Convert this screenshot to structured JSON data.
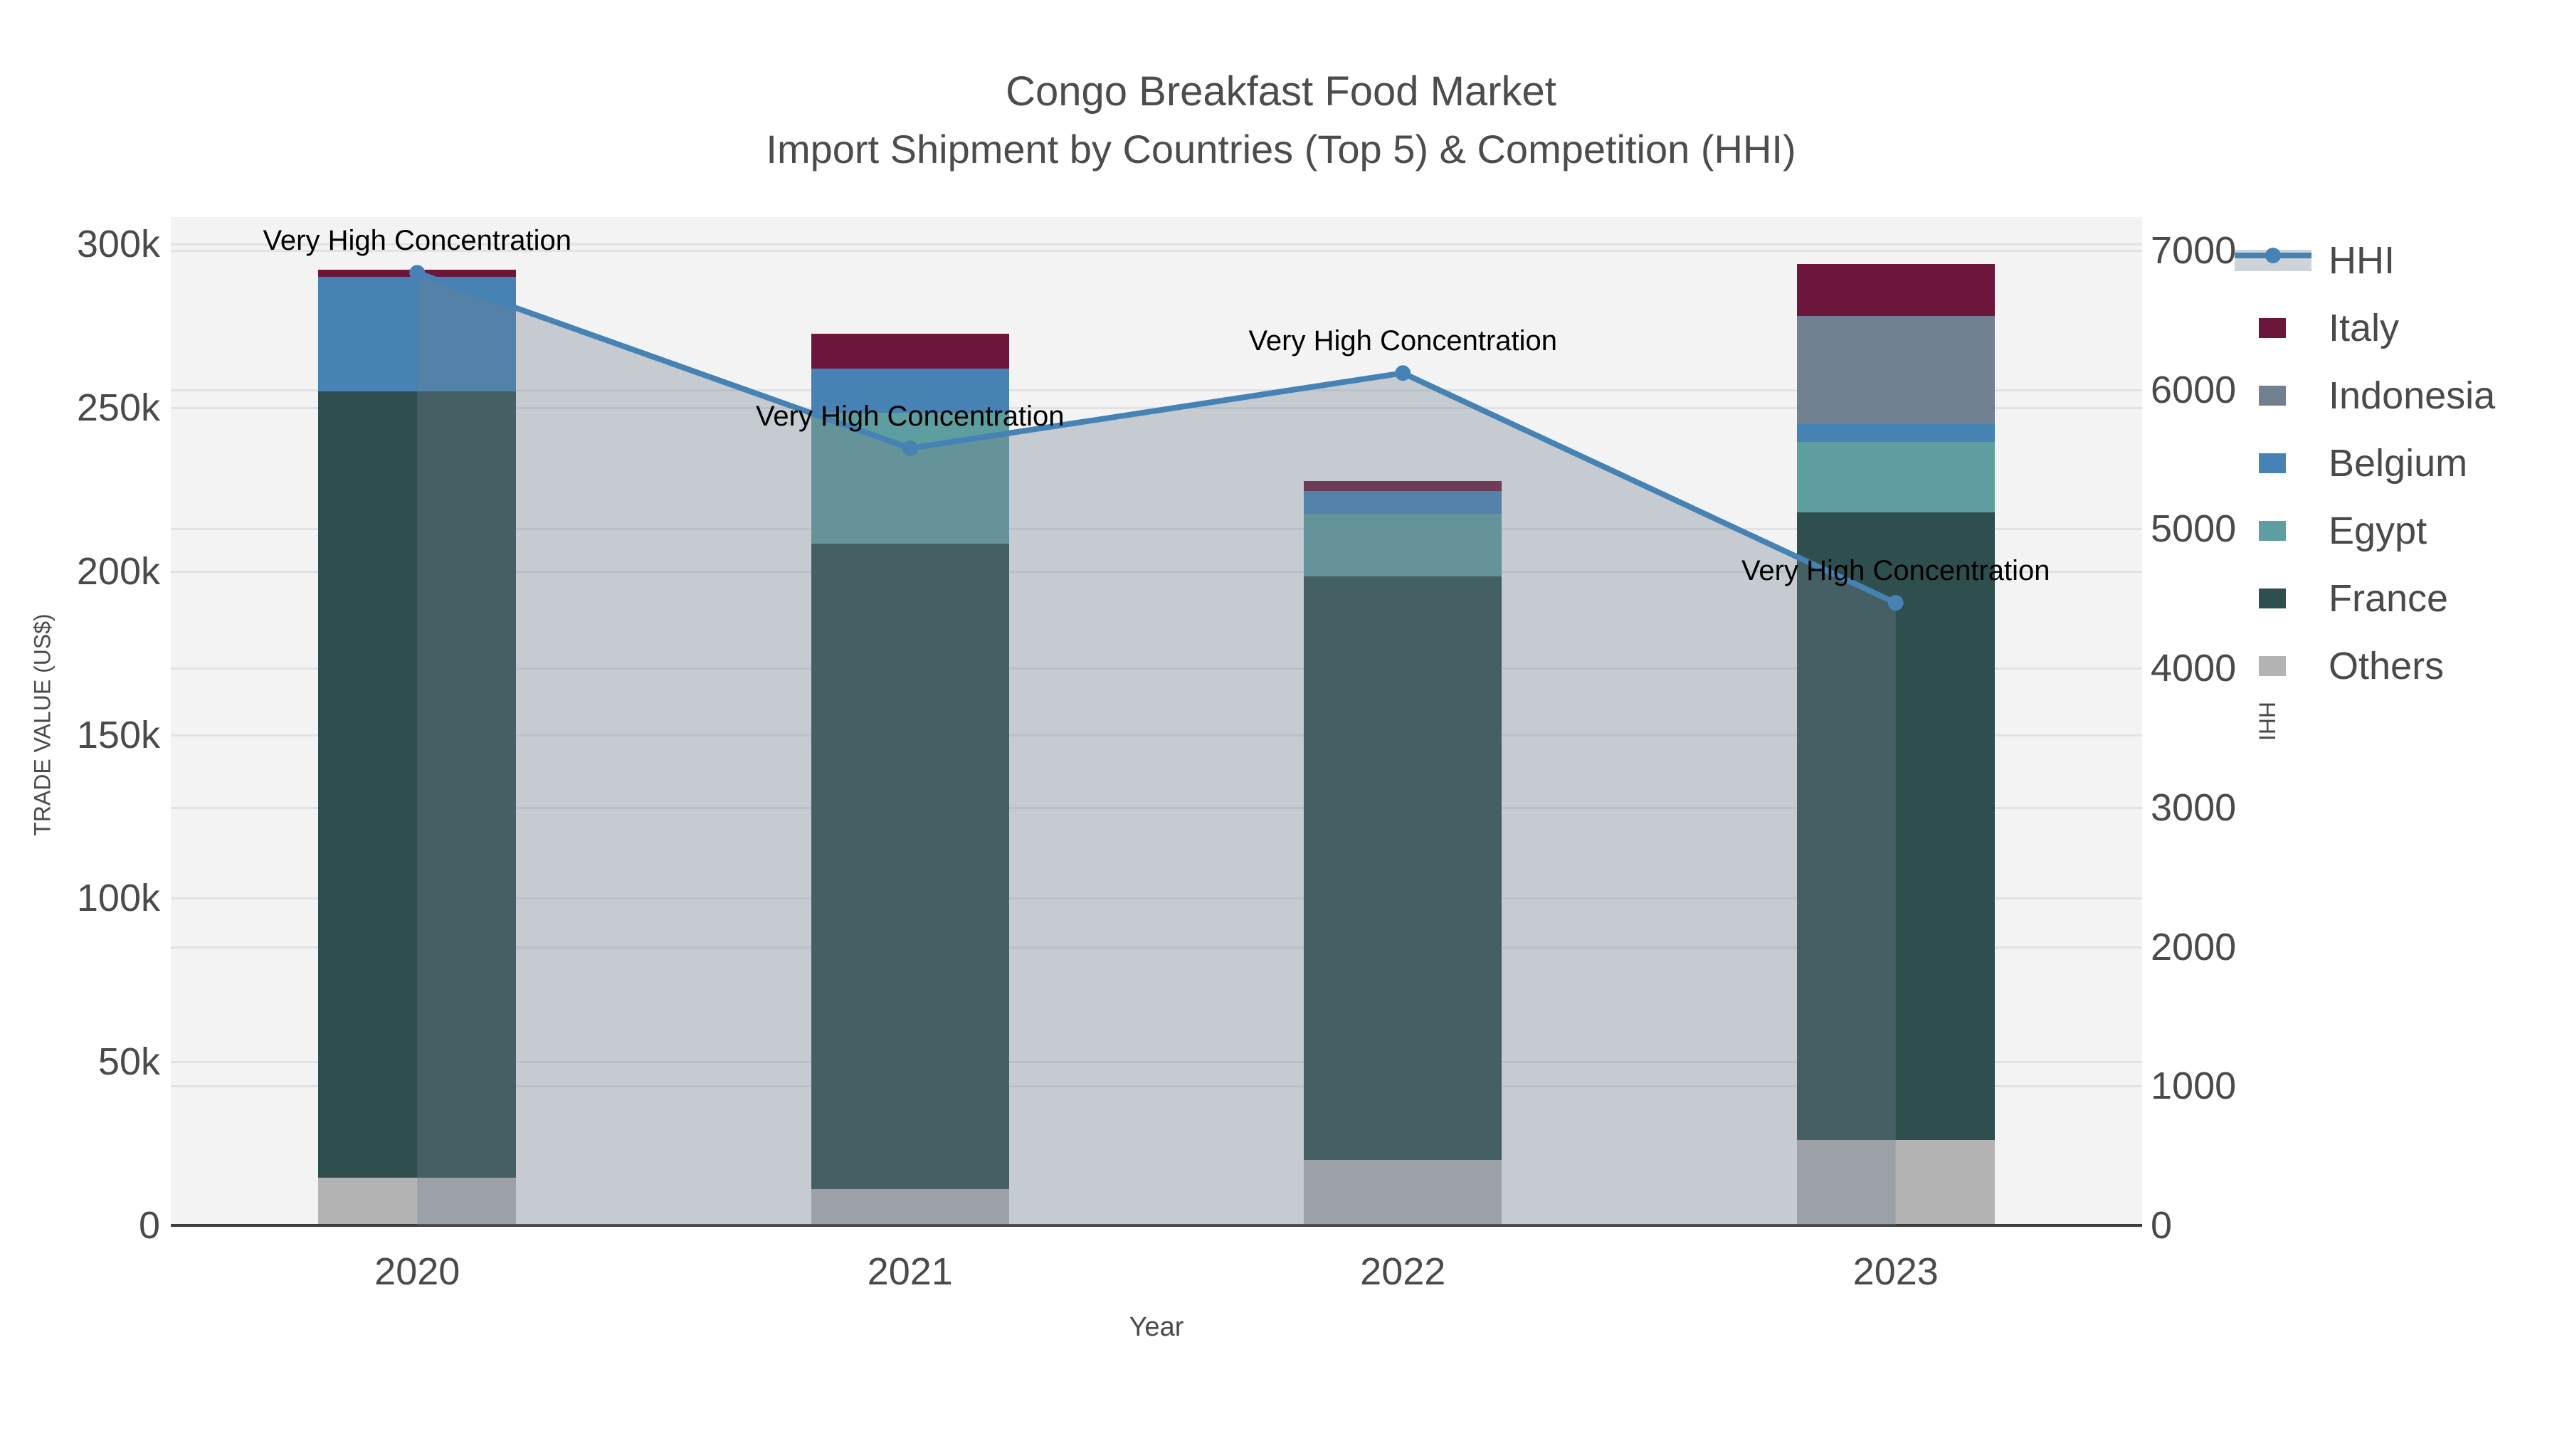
{
  "title": {
    "line1": "Congo Breakfast Food Market",
    "line2": "Import Shipment by Countries (Top 5) & Competition (HHI)"
  },
  "axes": {
    "x_title": "Year",
    "y_left_title": "TRADE VALUE (US$)",
    "y_right_title": "HHI",
    "x_ticks": [
      "2020",
      "2021",
      "2022",
      "2023"
    ],
    "y_left_ticks": [
      {
        "label": "0",
        "value": 0
      },
      {
        "label": "50k",
        "value": 50000
      },
      {
        "label": "100k",
        "value": 100000
      },
      {
        "label": "150k",
        "value": 150000
      },
      {
        "label": "200k",
        "value": 200000
      },
      {
        "label": "250k",
        "value": 250000
      },
      {
        "label": "300k",
        "value": 300000
      }
    ],
    "y_right_ticks": [
      {
        "label": "0",
        "value": 0
      },
      {
        "label": "1000",
        "value": 1000
      },
      {
        "label": "2000",
        "value": 2000
      },
      {
        "label": "3000",
        "value": 3000
      },
      {
        "label": "4000",
        "value": 4000
      },
      {
        "label": "5000",
        "value": 5000
      },
      {
        "label": "6000",
        "value": 6000
      },
      {
        "label": "7000",
        "value": 7000
      }
    ]
  },
  "legend_items": [
    {
      "label": "HHI",
      "type": "line",
      "color": "#4682B4"
    },
    {
      "label": "Italy",
      "type": "swatch",
      "color": "#6D163C"
    },
    {
      "label": "Indonesia",
      "type": "swatch",
      "color": "#708090"
    },
    {
      "label": "Belgium",
      "type": "swatch",
      "color": "#4682B4"
    },
    {
      "label": "Egypt",
      "type": "swatch",
      "color": "#5F9EA0"
    },
    {
      "label": "France",
      "type": "swatch",
      "color": "#2F4F4F"
    },
    {
      "label": "Others",
      "type": "swatch",
      "color": "#B3B3B3"
    }
  ],
  "colors": {
    "hhi_line": "#4682B4",
    "hhi_area_fill": "rgba(112,128,144,0.35)",
    "plot_background": "#F3F3F3",
    "gridline": "#E0E2E6",
    "axis_line": "#3C3C3C",
    "tick_text": "#4A4A4A",
    "title_text": "#4C4C4C",
    "annotation_text": "#000000"
  },
  "chart_data": {
    "type": "bar+line",
    "description": "Stacked bars of import trade value by origin country (left axis, US$) with HHI competition index line overlay and shaded area (right axis)",
    "categories": [
      "2020",
      "2021",
      "2022",
      "2023"
    ],
    "stack_order_bottom_to_top": [
      "Others",
      "France",
      "Egypt",
      "Belgium",
      "Indonesia",
      "Italy"
    ],
    "series": [
      {
        "name": "Others",
        "color": "#B3B3B3",
        "values": [
          14500,
          11000,
          20000,
          26000
        ]
      },
      {
        "name": "France",
        "color": "#2F4F4F",
        "values": [
          240500,
          197500,
          178500,
          192000
        ]
      },
      {
        "name": "Egypt",
        "color": "#5F9EA0",
        "values": [
          0,
          40000,
          19000,
          21500
        ]
      },
      {
        "name": "Belgium",
        "color": "#4682B4",
        "values": [
          35000,
          13500,
          7000,
          5500
        ]
      },
      {
        "name": "Indonesia",
        "color": "#708090",
        "values": [
          0,
          0,
          0,
          33000
        ]
      },
      {
        "name": "Italy",
        "color": "#6D163C",
        "values": [
          2200,
          10500,
          3000,
          16000
        ]
      }
    ],
    "line_series": {
      "name": "HHI",
      "axis": "right",
      "color": "#4682B4",
      "area_fill": "rgba(112,128,144,0.35)",
      "values": [
        6840,
        5580,
        6120,
        4470
      ]
    },
    "annotations": [
      {
        "year": "2020",
        "text": "Very High Concentration"
      },
      {
        "year": "2021",
        "text": "Very High Concentration"
      },
      {
        "year": "2022",
        "text": "Very High Concentration"
      },
      {
        "year": "2023",
        "text": "Very High Concentration"
      }
    ],
    "title": "Congo Breakfast Food Market — Import Shipment by Countries (Top 5) & Competition (HHI)",
    "xlabel": "Year",
    "ylabel_left": "TRADE VALUE (US$)",
    "ylabel_right": "HHI",
    "ylim_left": [
      0,
      300000
    ],
    "ylim_right": [
      0,
      7000
    ],
    "grid": true,
    "legend_position": "right"
  }
}
